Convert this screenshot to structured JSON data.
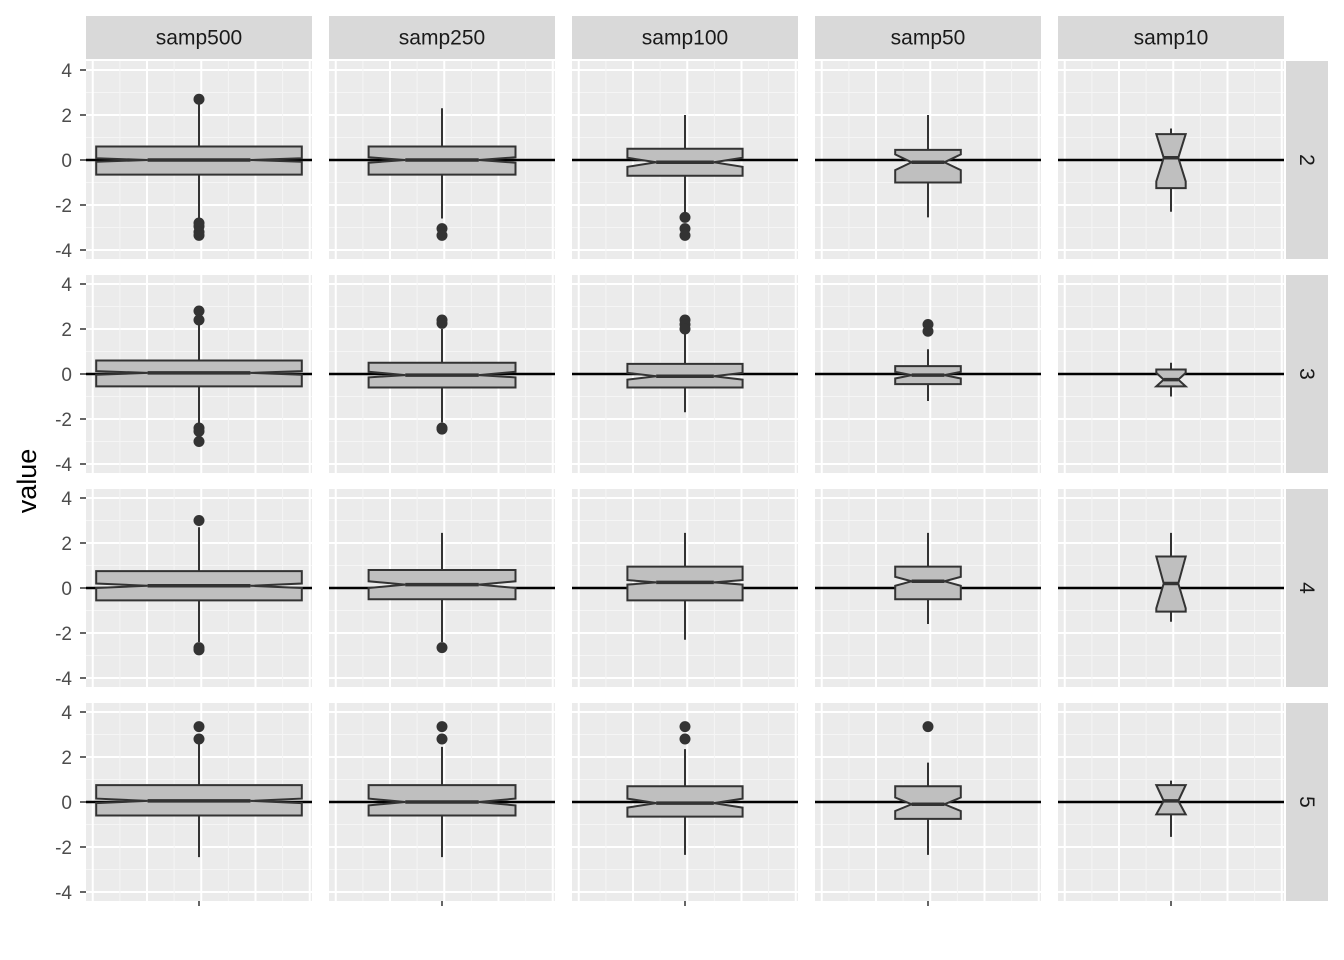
{
  "chart_data": {
    "type": "boxplot",
    "xlabel": "",
    "ylabel": "value",
    "ylim": [
      -4.4,
      4.4
    ],
    "y_ticks": [
      4,
      2,
      0,
      -2,
      -4
    ],
    "y_tick_labels": [
      "4",
      "2",
      "0",
      "-2",
      "-4"
    ],
    "notched": true,
    "reference_line_y": 0,
    "columns": [
      "samp500",
      "samp250",
      "samp100",
      "samp50",
      "samp10"
    ],
    "rows": [
      "2",
      "3",
      "4",
      "5"
    ],
    "panels": [
      {
        "row": "2",
        "col": "samp500",
        "q1": -0.65,
        "median": 0.0,
        "q3": 0.6,
        "notch_lo": -0.08,
        "notch_hi": 0.08,
        "whisker_lo": -2.65,
        "whisker_hi": 2.7,
        "outliers": [
          2.7,
          -2.8,
          -2.95,
          -3.2,
          -3.35
        ]
      },
      {
        "row": "2",
        "col": "samp250",
        "q1": -0.65,
        "median": 0.0,
        "q3": 0.6,
        "notch_lo": -0.12,
        "notch_hi": 0.12,
        "whisker_lo": -2.6,
        "whisker_hi": 2.3,
        "outliers": [
          -3.05,
          -3.35
        ]
      },
      {
        "row": "2",
        "col": "samp100",
        "q1": -0.7,
        "median": -0.1,
        "q3": 0.5,
        "notch_lo": -0.3,
        "notch_hi": 0.1,
        "whisker_lo": -2.45,
        "whisker_hi": 2.0,
        "outliers": [
          -2.55,
          -3.05,
          -3.35
        ]
      },
      {
        "row": "2",
        "col": "samp50",
        "q1": -1.0,
        "median": -0.1,
        "q3": 0.45,
        "notch_lo": -0.45,
        "notch_hi": 0.25,
        "whisker_lo": -2.55,
        "whisker_hi": 2.0,
        "outliers": []
      },
      {
        "row": "2",
        "col": "samp10",
        "q1": -1.25,
        "median": 0.1,
        "q3": 1.15,
        "notch_lo": -0.95,
        "notch_hi": 1.15,
        "whisker_lo": -2.3,
        "whisker_hi": 1.4,
        "outliers": []
      },
      {
        "row": "3",
        "col": "samp500",
        "q1": -0.55,
        "median": 0.05,
        "q3": 0.6,
        "notch_lo": -0.03,
        "notch_hi": 0.13,
        "whisker_lo": -2.3,
        "whisker_hi": 2.2,
        "outliers": [
          2.8,
          2.4,
          -2.4,
          -2.55,
          -3.0
        ]
      },
      {
        "row": "3",
        "col": "samp250",
        "q1": -0.6,
        "median": -0.05,
        "q3": 0.5,
        "notch_lo": -0.15,
        "notch_hi": 0.1,
        "whisker_lo": -2.15,
        "whisker_hi": 2.0,
        "outliers": [
          2.4,
          2.25,
          -2.4,
          -2.45
        ]
      },
      {
        "row": "3",
        "col": "samp100",
        "q1": -0.6,
        "median": -0.1,
        "q3": 0.45,
        "notch_lo": -0.25,
        "notch_hi": 0.05,
        "whisker_lo": -1.7,
        "whisker_hi": 1.85,
        "outliers": [
          2.4,
          2.2,
          2.0
        ]
      },
      {
        "row": "3",
        "col": "samp50",
        "q1": -0.45,
        "median": -0.05,
        "q3": 0.35,
        "notch_lo": -0.2,
        "notch_hi": 0.1,
        "whisker_lo": -1.2,
        "whisker_hi": 1.1,
        "outliers": [
          2.2,
          1.9
        ]
      },
      {
        "row": "3",
        "col": "samp10",
        "q1": -0.55,
        "median": -0.25,
        "q3": 0.2,
        "notch_lo": -0.55,
        "notch_hi": 0.05,
        "whisker_lo": -1.0,
        "whisker_hi": 0.5,
        "outliers": []
      },
      {
        "row": "4",
        "col": "samp500",
        "q1": -0.55,
        "median": 0.1,
        "q3": 0.75,
        "notch_lo": 0.0,
        "notch_hi": 0.2,
        "whisker_lo": -2.4,
        "whisker_hi": 2.7,
        "outliers": [
          3.0,
          -2.65,
          -2.75
        ]
      },
      {
        "row": "4",
        "col": "samp250",
        "q1": -0.5,
        "median": 0.15,
        "q3": 0.8,
        "notch_lo": 0.0,
        "notch_hi": 0.3,
        "whisker_lo": -2.4,
        "whisker_hi": 2.45,
        "outliers": [
          -2.65
        ]
      },
      {
        "row": "4",
        "col": "samp100",
        "q1": -0.55,
        "median": 0.25,
        "q3": 0.95,
        "notch_lo": 0.15,
        "notch_hi": 0.35,
        "whisker_lo": -2.3,
        "whisker_hi": 2.45,
        "outliers": []
      },
      {
        "row": "4",
        "col": "samp50",
        "q1": -0.5,
        "median": 0.3,
        "q3": 0.95,
        "notch_lo": 0.1,
        "notch_hi": 0.5,
        "whisker_lo": -1.6,
        "whisker_hi": 2.45,
        "outliers": []
      },
      {
        "row": "4",
        "col": "samp10",
        "q1": -1.05,
        "median": 0.2,
        "q3": 1.4,
        "notch_lo": -0.9,
        "notch_hi": 1.4,
        "whisker_lo": -1.5,
        "whisker_hi": 2.45,
        "outliers": []
      },
      {
        "row": "5",
        "col": "samp500",
        "q1": -0.6,
        "median": 0.05,
        "q3": 0.75,
        "notch_lo": -0.05,
        "notch_hi": 0.15,
        "whisker_lo": -2.45,
        "whisker_hi": 2.6,
        "outliers": [
          3.35,
          2.8
        ]
      },
      {
        "row": "5",
        "col": "samp250",
        "q1": -0.6,
        "median": 0.0,
        "q3": 0.75,
        "notch_lo": -0.15,
        "notch_hi": 0.15,
        "whisker_lo": -2.45,
        "whisker_hi": 2.45,
        "outliers": [
          3.35,
          2.8
        ]
      },
      {
        "row": "5",
        "col": "samp100",
        "q1": -0.65,
        "median": -0.05,
        "q3": 0.7,
        "notch_lo": -0.25,
        "notch_hi": 0.15,
        "whisker_lo": -2.35,
        "whisker_hi": 2.35,
        "outliers": [
          3.35,
          2.8
        ]
      },
      {
        "row": "5",
        "col": "samp50",
        "q1": -0.75,
        "median": -0.1,
        "q3": 0.7,
        "notch_lo": -0.4,
        "notch_hi": 0.2,
        "whisker_lo": -2.35,
        "whisker_hi": 1.75,
        "outliers": [
          3.35
        ]
      },
      {
        "row": "5",
        "col": "samp10",
        "q1": -0.55,
        "median": 0.05,
        "q3": 0.75,
        "notch_lo": -0.55,
        "notch_hi": 0.75,
        "whisker_lo": -1.55,
        "whisker_hi": 0.95,
        "outliers": []
      }
    ]
  }
}
